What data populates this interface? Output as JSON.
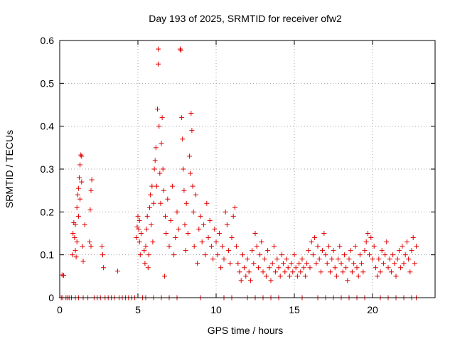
{
  "chart_data": {
    "type": "scatter",
    "title": "Day 193 of 2025, SRMTID for receiver ofw2",
    "xlabel": "GPS time / hours",
    "ylabel": "SRMTID / TECUs",
    "xlim": [
      0,
      24
    ],
    "ylim": [
      0,
      0.6
    ],
    "xticks": [
      0,
      5,
      10,
      15,
      20
    ],
    "xtick_labels": [
      "0",
      "5",
      "10",
      "15",
      "20"
    ],
    "yticks": [
      0,
      0.1,
      0.2,
      0.3,
      0.4,
      0.5,
      0.6
    ],
    "ytick_labels": [
      "0",
      "0.1",
      "0.2",
      "0.3",
      "0.4",
      "0.5",
      "0.6"
    ],
    "grid": true,
    "marker": "+",
    "color": "#e00000",
    "series": [
      {
        "name": "ofw2",
        "points": [
          [
            0.1,
            0.0
          ],
          [
            0.15,
            0.053
          ],
          [
            0.25,
            0.052
          ],
          [
            0.2,
            0.0
          ],
          [
            0.4,
            0.0
          ],
          [
            0.5,
            0.0
          ],
          [
            0.6,
            0.0
          ],
          [
            0.75,
            0.0
          ],
          [
            0.8,
            0.1
          ],
          [
            0.85,
            0.15
          ],
          [
            0.9,
            0.175
          ],
          [
            0.95,
            0.14
          ],
          [
            1.0,
            0.11
          ],
          [
            1.0,
            0.17
          ],
          [
            1.05,
            0.095
          ],
          [
            1.1,
            0.21
          ],
          [
            1.1,
            0.13
          ],
          [
            1.15,
            0.24
          ],
          [
            1.2,
            0.255
          ],
          [
            1.2,
            0.19
          ],
          [
            1.25,
            0.28
          ],
          [
            1.3,
            0.31
          ],
          [
            1.3,
            0.23
          ],
          [
            1.35,
            0.333
          ],
          [
            1.4,
            0.33
          ],
          [
            1.4,
            0.27
          ],
          [
            1.45,
            0.12
          ],
          [
            1.5,
            0.085
          ],
          [
            1.6,
            0.17
          ],
          [
            1.0,
            0.0
          ],
          [
            1.2,
            0.0
          ],
          [
            1.5,
            0.0
          ],
          [
            1.8,
            0.0
          ],
          [
            1.9,
            0.13
          ],
          [
            1.95,
            0.205
          ],
          [
            2.0,
            0.25
          ],
          [
            2.05,
            0.275
          ],
          [
            2.0,
            0.12
          ],
          [
            2.2,
            0.0
          ],
          [
            2.4,
            0.0
          ],
          [
            2.6,
            0.0
          ],
          [
            2.7,
            0.12
          ],
          [
            2.75,
            0.1
          ],
          [
            2.8,
            0.07
          ],
          [
            2.9,
            0.0
          ],
          [
            3.1,
            0.0
          ],
          [
            3.3,
            0.0
          ],
          [
            3.5,
            0.0
          ],
          [
            3.7,
            0.062
          ],
          [
            3.8,
            0.0
          ],
          [
            4.0,
            0.0
          ],
          [
            4.2,
            0.0
          ],
          [
            4.4,
            0.0
          ],
          [
            4.6,
            0.0
          ],
          [
            4.8,
            0.0
          ],
          [
            4.9,
            0.14
          ],
          [
            4.95,
            0.165
          ],
          [
            5.0,
            0.19
          ],
          [
            5.05,
            0.16
          ],
          [
            5.1,
            0.13
          ],
          [
            5.1,
            0.18
          ],
          [
            5.15,
            0.1
          ],
          [
            5.2,
            0.15
          ],
          [
            5.3,
            0.0
          ],
          [
            5.4,
            0.11
          ],
          [
            5.45,
            0.08
          ],
          [
            5.5,
            0.12
          ],
          [
            5.55,
            0.16
          ],
          [
            5.6,
            0.19
          ],
          [
            5.65,
            0.07
          ],
          [
            5.7,
            0.1
          ],
          [
            5.75,
            0.21
          ],
          [
            5.8,
            0.24
          ],
          [
            5.85,
            0.17
          ],
          [
            5.9,
            0.26
          ],
          [
            5.95,
            0.13
          ],
          [
            6.0,
            0.22
          ],
          [
            6.05,
            0.3
          ],
          [
            6.1,
            0.32
          ],
          [
            6.15,
            0.35
          ],
          [
            6.2,
            0.26
          ],
          [
            6.25,
            0.44
          ],
          [
            6.3,
            0.58
          ],
          [
            6.3,
            0.545
          ],
          [
            6.35,
            0.4
          ],
          [
            6.4,
            0.29
          ],
          [
            6.45,
            0.22
          ],
          [
            6.5,
            0.36
          ],
          [
            6.55,
            0.42
          ],
          [
            6.6,
            0.3
          ],
          [
            6.65,
            0.25
          ],
          [
            6.7,
            0.05
          ],
          [
            6.75,
            0.19
          ],
          [
            6.8,
            0.15
          ],
          [
            6.9,
            0.23
          ],
          [
            7.0,
            0.12
          ],
          [
            7.1,
            0.18
          ],
          [
            7.2,
            0.26
          ],
          [
            7.3,
            0.1
          ],
          [
            7.4,
            0.14
          ],
          [
            7.5,
            0.2
          ],
          [
            7.6,
            0.16
          ],
          [
            7.7,
            0.58
          ],
          [
            7.75,
            0.577
          ],
          [
            7.8,
            0.42
          ],
          [
            7.85,
            0.37
          ],
          [
            7.9,
            0.3
          ],
          [
            7.95,
            0.25
          ],
          [
            8.0,
            0.17
          ],
          [
            8.05,
            0.11
          ],
          [
            8.1,
            0.22
          ],
          [
            8.2,
            0.15
          ],
          [
            8.3,
            0.33
          ],
          [
            8.35,
            0.29
          ],
          [
            8.4,
            0.43
          ],
          [
            8.45,
            0.39
          ],
          [
            8.5,
            0.26
          ],
          [
            8.55,
            0.2
          ],
          [
            8.6,
            0.12
          ],
          [
            8.7,
            0.24
          ],
          [
            8.8,
            0.08
          ],
          [
            8.9,
            0.16
          ],
          [
            9.0,
            0.19
          ],
          [
            9.1,
            0.13
          ],
          [
            9.2,
            0.17
          ],
          [
            9.3,
            0.1
          ],
          [
            9.4,
            0.22
          ],
          [
            9.5,
            0.14
          ],
          [
            9.6,
            0.18
          ],
          [
            9.7,
            0.12
          ],
          [
            9.8,
            0.09
          ],
          [
            9.9,
            0.16
          ],
          [
            10.0,
            0.13
          ],
          [
            10.1,
            0.1
          ],
          [
            10.2,
            0.15
          ],
          [
            10.3,
            0.07
          ],
          [
            10.4,
            0.12
          ],
          [
            10.5,
            0.09
          ],
          [
            10.6,
            0.2
          ],
          [
            10.7,
            0.17
          ],
          [
            10.8,
            0.11
          ],
          [
            10.9,
            0.08
          ],
          [
            11.0,
            0.14
          ],
          [
            11.1,
            0.19
          ],
          [
            11.2,
            0.21
          ],
          [
            11.3,
            0.12
          ],
          [
            11.4,
            0.08
          ],
          [
            11.5,
            0.06
          ],
          [
            11.6,
            0.04
          ],
          [
            11.7,
            0.1
          ],
          [
            11.8,
            0.07
          ],
          [
            11.9,
            0.05
          ],
          [
            12.0,
            0.09
          ],
          [
            12.1,
            0.06
          ],
          [
            12.2,
            0.04
          ],
          [
            12.3,
            0.11
          ],
          [
            12.4,
            0.08
          ],
          [
            12.5,
            0.15
          ],
          [
            12.6,
            0.12
          ],
          [
            12.7,
            0.07
          ],
          [
            12.8,
            0.1
          ],
          [
            12.9,
            0.13
          ],
          [
            13.0,
            0.06
          ],
          [
            13.1,
            0.09
          ],
          [
            13.2,
            0.05
          ],
          [
            13.3,
            0.11
          ],
          [
            13.4,
            0.07
          ],
          [
            13.5,
            0.04
          ],
          [
            13.6,
            0.08
          ],
          [
            13.7,
            0.12
          ],
          [
            13.8,
            0.06
          ],
          [
            13.9,
            0.09
          ],
          [
            14.0,
            0.07
          ],
          [
            14.1,
            0.05
          ],
          [
            14.2,
            0.1
          ],
          [
            14.3,
            0.08
          ],
          [
            14.4,
            0.06
          ],
          [
            14.5,
            0.09
          ],
          [
            14.6,
            0.07
          ],
          [
            14.7,
            0.05
          ],
          [
            14.8,
            0.08
          ],
          [
            14.9,
            0.06
          ],
          [
            15.0,
            0.1
          ],
          [
            15.1,
            0.07
          ],
          [
            15.2,
            0.05
          ],
          [
            15.3,
            0.08
          ],
          [
            15.4,
            0.06
          ],
          [
            15.5,
            0.09
          ],
          [
            15.6,
            0.07
          ],
          [
            15.7,
            0.05
          ],
          [
            15.8,
            0.08
          ],
          [
            15.9,
            0.11
          ],
          [
            16.0,
            0.07
          ],
          [
            16.1,
            0.13
          ],
          [
            16.2,
            0.1
          ],
          [
            16.3,
            0.14
          ],
          [
            16.4,
            0.08
          ],
          [
            16.5,
            0.12
          ],
          [
            16.6,
            0.09
          ],
          [
            16.7,
            0.06
          ],
          [
            16.8,
            0.11
          ],
          [
            16.9,
            0.15
          ],
          [
            17.0,
            0.1
          ],
          [
            17.1,
            0.08
          ],
          [
            17.2,
            0.12
          ],
          [
            17.3,
            0.06
          ],
          [
            17.4,
            0.09
          ],
          [
            17.5,
            0.11
          ],
          [
            17.6,
            0.07
          ],
          [
            17.7,
            0.05
          ],
          [
            17.8,
            0.09
          ],
          [
            17.9,
            0.12
          ],
          [
            18.0,
            0.08
          ],
          [
            18.1,
            0.06
          ],
          [
            18.2,
            0.1
          ],
          [
            18.3,
            0.07
          ],
          [
            18.4,
            0.04
          ],
          [
            18.5,
            0.09
          ],
          [
            18.6,
            0.11
          ],
          [
            18.7,
            0.06
          ],
          [
            18.8,
            0.08
          ],
          [
            18.9,
            0.12
          ],
          [
            19.0,
            0.07
          ],
          [
            19.1,
            0.05
          ],
          [
            19.2,
            0.1
          ],
          [
            19.3,
            0.08
          ],
          [
            19.4,
            0.06
          ],
          [
            19.5,
            0.11
          ],
          [
            19.6,
            0.13
          ],
          [
            19.7,
            0.15
          ],
          [
            19.8,
            0.1
          ],
          [
            19.9,
            0.14
          ],
          [
            20.0,
            0.09
          ],
          [
            20.1,
            0.12
          ],
          [
            20.2,
            0.07
          ],
          [
            20.3,
            0.05
          ],
          [
            20.4,
            0.09
          ],
          [
            20.5,
            0.06
          ],
          [
            20.6,
            0.11
          ],
          [
            20.7,
            0.08
          ],
          [
            20.8,
            0.1
          ],
          [
            20.9,
            0.13
          ],
          [
            21.0,
            0.07
          ],
          [
            21.1,
            0.09
          ],
          [
            21.2,
            0.06
          ],
          [
            21.3,
            0.1
          ],
          [
            21.4,
            0.08
          ],
          [
            21.5,
            0.05
          ],
          [
            21.6,
            0.09
          ],
          [
            21.7,
            0.11
          ],
          [
            21.8,
            0.07
          ],
          [
            21.9,
            0.12
          ],
          [
            22.0,
            0.08
          ],
          [
            22.1,
            0.1
          ],
          [
            22.2,
            0.13
          ],
          [
            22.3,
            0.09
          ],
          [
            22.4,
            0.06
          ],
          [
            22.5,
            0.11
          ],
          [
            22.6,
            0.14
          ],
          [
            22.7,
            0.08
          ],
          [
            22.8,
            0.12
          ],
          [
            5.5,
            0.0
          ],
          [
            6.0,
            0.0
          ],
          [
            6.5,
            0.0
          ],
          [
            7.0,
            0.0
          ],
          [
            7.5,
            0.0
          ],
          [
            9.0,
            0.0
          ],
          [
            10.5,
            0.0
          ],
          [
            11.0,
            0.0
          ],
          [
            12.0,
            0.0
          ],
          [
            12.5,
            0.0
          ],
          [
            13.0,
            0.0
          ],
          [
            13.5,
            0.0
          ],
          [
            14.0,
            0.0
          ],
          [
            15.5,
            0.0
          ],
          [
            16.5,
            0.0
          ],
          [
            17.0,
            0.0
          ],
          [
            17.5,
            0.0
          ],
          [
            18.0,
            0.0
          ],
          [
            18.5,
            0.0
          ],
          [
            19.0,
            0.0
          ],
          [
            19.5,
            0.0
          ],
          [
            20.5,
            0.0
          ],
          [
            21.0,
            0.0
          ],
          [
            21.5,
            0.0
          ],
          [
            22.0,
            0.0
          ],
          [
            22.5,
            0.0
          ],
          [
            22.8,
            0.0
          ]
        ]
      }
    ]
  }
}
